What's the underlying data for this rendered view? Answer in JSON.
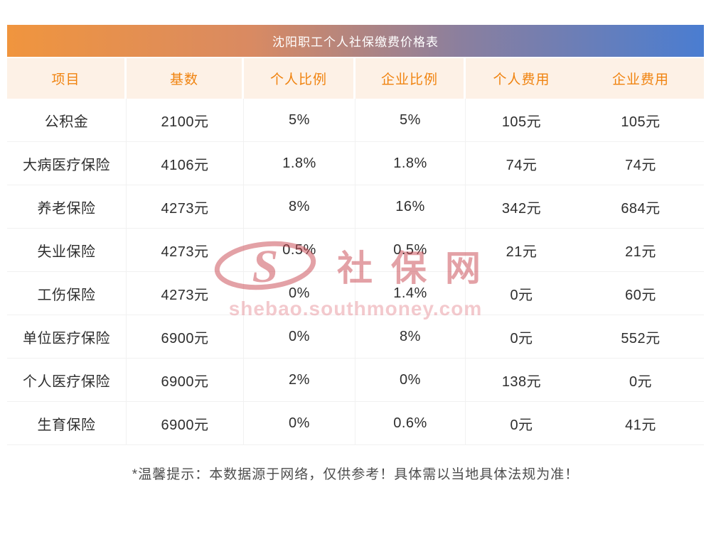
{
  "header": {
    "title": "沈阳职工个人社保缴费价格表"
  },
  "chart_data": {
    "type": "table",
    "title": "沈阳职工个人社保缴费价格表",
    "headers": [
      "项目",
      "基数",
      "个人比例",
      "企业比例",
      "个人费用",
      "企业费用"
    ],
    "rows": [
      [
        "公积金",
        "2100元",
        "5%",
        "5%",
        "105元",
        "105元"
      ],
      [
        "大病医疗保险",
        "4106元",
        "1.8%",
        "1.8%",
        "74元",
        "74元"
      ],
      [
        "养老保险",
        "4273元",
        "8%",
        "16%",
        "342元",
        "684元"
      ],
      [
        "失业保险",
        "4273元",
        "0.5%",
        "0.5%",
        "21元",
        "21元"
      ],
      [
        "工伤保险",
        "4273元",
        "0%",
        "1.4%",
        "0元",
        "60元"
      ],
      [
        "单位医疗保险",
        "6900元",
        "0%",
        "8%",
        "0元",
        "552元"
      ],
      [
        "个人医疗保险",
        "6900元",
        "2%",
        "0%",
        "138元",
        "0元"
      ],
      [
        "生育保险",
        "6900元",
        "0%",
        "0.6%",
        "0元",
        "41元"
      ]
    ]
  },
  "watermark": {
    "logo_letter": "S",
    "site_name": "社保网",
    "url": "shebao.southmoney.com"
  },
  "footer": {
    "note": "*温馨提示：本数据源于网络，仅供参考！具体需以当地具体法规为准！"
  },
  "colors": {
    "accent_orange": "#f0830f",
    "header_bg": "#fdf1e6",
    "gradient_left": "#f0953e",
    "gradient_right": "#4a7dd1",
    "watermark_red": "#c8454f"
  }
}
